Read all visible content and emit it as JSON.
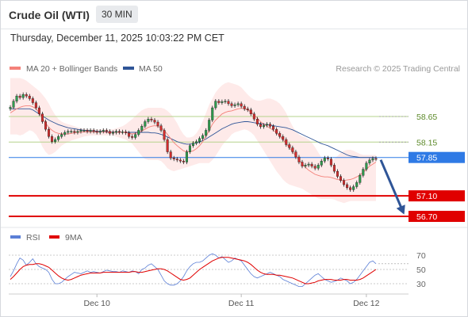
{
  "header": {
    "title": "Crude Oil (WTI)",
    "timeframe": "30 MIN",
    "datetime": "Thursday, December 11, 2025 10:03:22 PM CET"
  },
  "legend": {
    "ma20_label": "MA 20 + Bollinger Bands",
    "ma20_color": "#f4817a",
    "ma50_label": "MA 50",
    "ma50_color": "#2f5597",
    "copyright": "Research © 2025 Trading Central"
  },
  "rsi_legend": {
    "rsi_label": "RSI",
    "rsi_color": "#5b7fd6",
    "ma_label": "9MA",
    "ma_color": "#e00000"
  },
  "chart_data": [
    {
      "type": "candlestick",
      "title": "Crude Oil (WTI)",
      "x_tick_labels": [
        "Dec 10",
        "Dec 11",
        "Dec 12"
      ],
      "price_levels": [
        {
          "label": "58.65",
          "value": 58.65,
          "style": "resistance",
          "color": "#b5d38c"
        },
        {
          "label": "58.15",
          "value": 58.15,
          "style": "resistance",
          "color": "#b5d38c"
        },
        {
          "label": "57.85",
          "value": 57.85,
          "style": "pivot",
          "color": "#2f7ae5"
        },
        {
          "label": "57.10",
          "value": 57.1,
          "style": "support",
          "color": "#e00000"
        },
        {
          "label": "56.70",
          "value": 56.7,
          "style": "support",
          "color": "#e00000"
        }
      ],
      "close": [
        58.83,
        58.95,
        59.05,
        59.02,
        59.08,
        59.05,
        59.0,
        58.92,
        58.82,
        58.7,
        58.55,
        58.4,
        58.26,
        58.16,
        58.2,
        58.26,
        58.3,
        58.34,
        58.36,
        58.36,
        58.34,
        58.36,
        58.38,
        58.38,
        58.36,
        58.38,
        58.36,
        58.34,
        58.36,
        58.38,
        58.36,
        58.32,
        58.34,
        58.36,
        58.34,
        58.35,
        58.33,
        58.26,
        58.24,
        58.3,
        58.38,
        58.46,
        58.55,
        58.6,
        58.58,
        58.54,
        58.47,
        58.38,
        58.2,
        57.96,
        57.84,
        57.82,
        57.8,
        57.78,
        57.76,
        57.96,
        58.08,
        58.13,
        58.16,
        58.22,
        58.28,
        58.38,
        58.58,
        58.82,
        58.95,
        58.92,
        58.94,
        58.95,
        58.9,
        58.86,
        58.88,
        58.9,
        58.85,
        58.8,
        58.78,
        58.7,
        58.6,
        58.5,
        58.45,
        58.48,
        58.5,
        58.46,
        58.4,
        58.32,
        58.26,
        58.2,
        58.1,
        58.04,
        57.96,
        57.86,
        57.76,
        57.68,
        57.7,
        57.72,
        57.68,
        57.64,
        57.7,
        57.78,
        57.84,
        57.82,
        57.7,
        57.58,
        57.48,
        57.4,
        57.32,
        57.26,
        57.22,
        57.28,
        57.36,
        57.5,
        57.62,
        57.74,
        57.8,
        57.83,
        57.82
      ],
      "ma20": [
        58.72,
        58.76,
        58.8,
        58.83,
        58.85,
        58.86,
        58.86,
        58.84,
        58.8,
        58.72,
        58.62,
        58.52,
        58.44,
        58.38,
        58.34,
        58.32,
        58.31,
        58.31,
        58.31,
        58.32,
        58.33,
        58.34,
        58.34,
        58.35,
        58.35,
        58.35,
        58.35,
        58.35,
        58.35,
        58.35,
        58.34,
        58.34,
        58.34,
        58.34,
        58.34,
        58.34,
        58.34,
        58.32,
        58.31,
        58.32,
        58.34,
        58.37,
        58.4,
        58.44,
        58.46,
        58.47,
        58.46,
        58.43,
        58.38,
        58.3,
        58.22,
        58.14,
        58.08,
        58.03,
        57.98,
        57.96,
        57.96,
        57.98,
        58.02,
        58.08,
        58.16,
        58.26,
        58.38,
        58.5,
        58.58,
        58.64,
        58.7,
        58.73,
        58.75,
        58.76,
        58.78,
        58.8,
        58.81,
        58.8,
        58.78,
        58.74,
        58.68,
        58.62,
        58.55,
        58.5,
        58.46,
        58.42,
        58.38,
        58.33,
        58.27,
        58.2,
        58.12,
        58.04,
        57.96,
        57.88,
        57.8,
        57.73,
        57.66,
        57.6,
        57.56,
        57.52,
        57.5,
        57.48,
        57.47,
        57.47,
        57.46,
        57.44,
        57.42,
        57.41,
        57.4,
        57.41,
        57.42,
        57.44,
        57.47,
        57.51,
        57.56,
        57.62,
        57.68,
        57.72,
        57.76
      ],
      "ma50": [
        58.8,
        58.8,
        58.8,
        58.8,
        58.8,
        58.8,
        58.8,
        58.78,
        58.74,
        58.7,
        58.66,
        58.62,
        58.58,
        58.55,
        58.52,
        58.49,
        58.47,
        58.45,
        58.43,
        58.42,
        58.41,
        58.4,
        58.39,
        58.38,
        58.38,
        58.37,
        58.37,
        58.36,
        58.36,
        58.36,
        58.35,
        58.35,
        58.35,
        58.35,
        58.35,
        58.34,
        58.34,
        58.34,
        58.34,
        58.34,
        58.34,
        58.34,
        58.34,
        58.34,
        58.33,
        58.33,
        58.32,
        58.3,
        58.28,
        58.25,
        58.22,
        58.19,
        58.16,
        58.14,
        58.12,
        58.11,
        58.11,
        58.12,
        58.13,
        58.15,
        58.18,
        58.21,
        58.25,
        58.29,
        58.33,
        58.37,
        58.41,
        58.44,
        58.47,
        58.5,
        58.52,
        58.53,
        58.54,
        58.55,
        58.55,
        58.54,
        58.53,
        58.52,
        58.51,
        58.5,
        58.49,
        58.48,
        58.47,
        58.46,
        58.45,
        58.44,
        58.43,
        58.41,
        58.39,
        58.36,
        58.33,
        58.3,
        58.27,
        58.24,
        58.21,
        58.18,
        58.15,
        58.12,
        58.1,
        58.08,
        58.05,
        58.02,
        57.99,
        57.96,
        57.93,
        57.9,
        57.88,
        57.87,
        57.86,
        57.85,
        57.85,
        57.85,
        57.85,
        57.85,
        57.85
      ],
      "bb_upper": [
        59.4,
        59.4,
        59.4,
        59.4,
        59.38,
        59.35,
        59.3,
        59.25,
        59.2,
        59.15,
        59.08,
        59.0,
        58.9,
        58.78,
        58.68,
        58.6,
        58.55,
        58.52,
        58.5,
        58.48,
        58.46,
        58.44,
        58.42,
        58.41,
        58.4,
        58.4,
        58.4,
        58.4,
        58.4,
        58.4,
        58.4,
        58.4,
        58.4,
        58.42,
        58.44,
        58.46,
        58.5,
        58.55,
        58.6,
        58.66,
        58.72,
        58.77,
        58.8,
        58.82,
        58.82,
        58.82,
        58.82,
        58.82,
        58.8,
        58.76,
        58.7,
        58.62,
        58.52,
        58.4,
        58.3,
        58.24,
        58.24,
        58.26,
        58.32,
        58.42,
        58.56,
        58.72,
        58.88,
        59.0,
        59.12,
        59.2,
        59.26,
        59.3,
        59.32,
        59.3,
        59.28,
        59.26,
        59.22,
        59.15,
        59.08,
        59.02,
        58.98,
        58.96,
        58.96,
        58.98,
        59.0,
        59.0,
        58.98,
        58.95,
        58.9,
        58.82,
        58.72,
        58.58,
        58.46,
        58.36,
        58.3,
        58.26,
        58.24,
        58.2,
        58.14,
        58.05,
        57.95,
        57.85,
        57.8,
        57.78,
        57.79,
        57.82,
        57.88,
        57.94,
        57.98,
        58.0,
        58.0,
        57.98,
        57.95,
        57.92,
        57.9,
        57.9,
        57.9,
        57.9,
        57.9
      ],
      "bb_lower": [
        58.3,
        58.3,
        58.3,
        58.28,
        58.3,
        58.34,
        58.38,
        58.36,
        58.3,
        58.2,
        58.06,
        57.96,
        57.9,
        57.92,
        57.96,
        58.02,
        58.08,
        58.12,
        58.15,
        58.18,
        58.2,
        58.22,
        58.24,
        58.26,
        58.27,
        58.28,
        58.28,
        58.28,
        58.28,
        58.28,
        58.28,
        58.28,
        58.28,
        58.26,
        58.24,
        58.22,
        58.2,
        58.16,
        58.12,
        58.04,
        57.96,
        57.88,
        57.82,
        57.8,
        57.8,
        57.8,
        57.8,
        57.78,
        57.72,
        57.64,
        57.6,
        57.58,
        57.6,
        57.62,
        57.64,
        57.66,
        57.68,
        57.7,
        57.72,
        57.74,
        57.74,
        57.74,
        57.74,
        57.8,
        57.88,
        57.98,
        58.08,
        58.16,
        58.22,
        58.3,
        58.34,
        58.36,
        58.38,
        58.4,
        58.38,
        58.34,
        58.28,
        58.18,
        58.08,
        57.98,
        57.88,
        57.78,
        57.68,
        57.58,
        57.5,
        57.42,
        57.36,
        57.32,
        57.3,
        57.28,
        57.26,
        57.24,
        57.2,
        57.16,
        57.12,
        57.08,
        57.05,
        57.04,
        57.04,
        57.04,
        57.04,
        57.03,
        57.0,
        56.98,
        56.96,
        56.98,
        57.0,
        57.0,
        57.0,
        57.0,
        57.0,
        57.0,
        57.0,
        57.0,
        57.0
      ],
      "forecast_arrow": {
        "from": 57.85,
        "to": 56.7,
        "direction": "down"
      }
    },
    {
      "type": "line",
      "title": "RSI",
      "y_tick_labels": [
        "70",
        "50",
        "30"
      ],
      "y_ticks": [
        70,
        50,
        30
      ],
      "ylim": [
        20,
        80
      ],
      "series": [
        {
          "name": "RSI",
          "values": [
            40,
            48,
            58,
            66,
            63,
            56,
            60,
            65,
            58,
            54,
            52,
            50,
            46,
            36,
            30,
            30,
            32,
            36,
            40,
            43,
            46,
            45,
            44,
            46,
            48,
            46,
            47,
            46,
            45,
            47,
            49,
            48,
            47,
            47,
            46,
            48,
            47,
            46,
            48,
            47,
            44,
            50,
            52,
            56,
            58,
            54,
            50,
            42,
            34,
            30,
            28,
            28,
            30,
            34,
            40,
            48,
            54,
            58,
            60,
            60,
            62,
            66,
            70,
            72,
            70,
            66,
            68,
            64,
            60,
            62,
            66,
            64,
            62,
            56,
            50,
            44,
            40,
            38,
            40,
            42,
            44,
            46,
            44,
            42,
            40,
            36,
            34,
            32,
            30,
            28,
            26,
            26,
            30,
            34,
            38,
            42,
            44,
            40,
            36,
            34,
            32,
            33,
            35,
            38,
            36,
            34,
            30,
            32,
            36,
            42,
            48,
            54,
            60,
            62,
            58
          ]
        },
        {
          "name": "9MA",
          "values": [
            36,
            40,
            45,
            50,
            54,
            56,
            57,
            57,
            58,
            58,
            57,
            55,
            53,
            49,
            45,
            41,
            38,
            36,
            35,
            36,
            38,
            40,
            42,
            43,
            44,
            45,
            45,
            45,
            45,
            46,
            46,
            46,
            46,
            46,
            46,
            46,
            46,
            46,
            47,
            47,
            46,
            46,
            47,
            48,
            49,
            50,
            51,
            51,
            50,
            48,
            45,
            42,
            39,
            36,
            35,
            36,
            38,
            42,
            46,
            50,
            53,
            56,
            59,
            62,
            64,
            66,
            67,
            67,
            67,
            66,
            65,
            64,
            63,
            62,
            60,
            57,
            53,
            49,
            46,
            44,
            43,
            43,
            43,
            42,
            42,
            41,
            40,
            39,
            38,
            36,
            34,
            32,
            30,
            30,
            31,
            32,
            34,
            35,
            36,
            36,
            36,
            35,
            35,
            35,
            36,
            36,
            35,
            35,
            35,
            36,
            38,
            41,
            44,
            47,
            50
          ]
        }
      ]
    }
  ]
}
